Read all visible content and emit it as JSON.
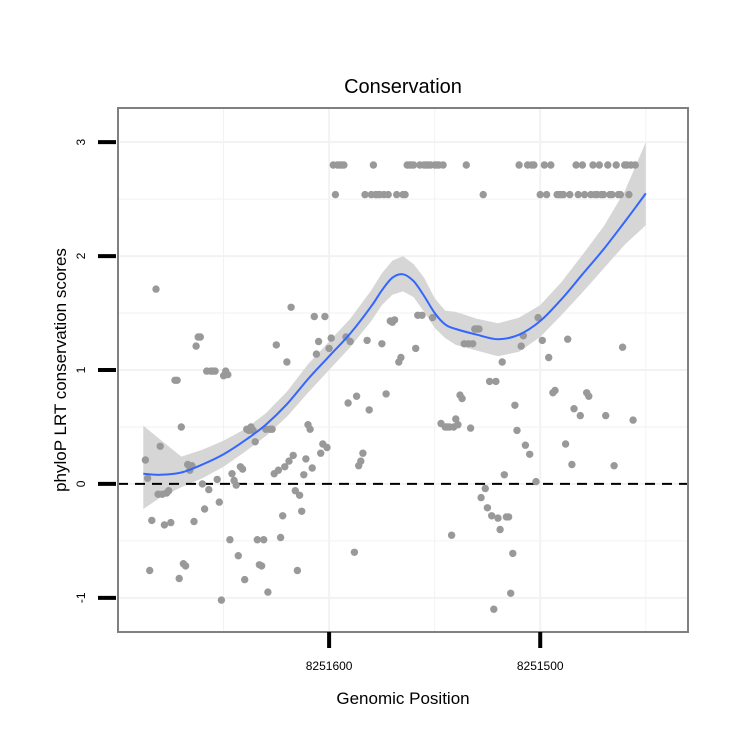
{
  "chart_data": {
    "type": "scatter",
    "title": "Conservation",
    "xlabel": "Genomic Position",
    "ylabel": "phyloP LRT conservation scores",
    "x_tick_labels": [
      "8251600",
      "8251500"
    ],
    "y_tick_labels": [
      "-1",
      "0",
      "1",
      "2",
      "3"
    ],
    "ylim": [
      -1.3,
      3.3
    ],
    "grid": true,
    "reference_line": {
      "y": 0,
      "style": "dashed"
    },
    "colors": {
      "points": "#999999",
      "smooth_line": "#3366ff",
      "ribbon": "#d6d6d6",
      "panel_border": "#808080",
      "grid": "#f2f2f2"
    },
    "series": [
      {
        "kind": "points",
        "points": [
          [
            8251687,
            0.21
          ],
          [
            8251686,
            0.05
          ],
          [
            8251685,
            -0.76
          ],
          [
            8251684,
            -0.32
          ],
          [
            8251682,
            1.71
          ],
          [
            8251681,
            -0.09
          ],
          [
            8251680,
            0.33
          ],
          [
            8251679,
            -0.09
          ],
          [
            8251678,
            -0.36
          ],
          [
            8251677,
            -0.08
          ],
          [
            8251676,
            -0.06
          ],
          [
            8251675,
            -0.34
          ],
          [
            8251673,
            0.91
          ],
          [
            8251672,
            0.91
          ],
          [
            8251671,
            -0.83
          ],
          [
            8251670,
            0.5
          ],
          [
            8251669,
            -0.7
          ],
          [
            8251668,
            -0.72
          ],
          [
            8251667,
            0.17
          ],
          [
            8251666,
            0.12
          ],
          [
            8251665,
            0.16
          ],
          [
            8251664,
            -0.33
          ],
          [
            8251663,
            1.21
          ],
          [
            8251662,
            1.29
          ],
          [
            8251661,
            1.29
          ],
          [
            8251660,
            0.0
          ],
          [
            8251659,
            -0.22
          ],
          [
            8251658,
            0.99
          ],
          [
            8251657,
            -0.05
          ],
          [
            8251656,
            0.99
          ],
          [
            8251655,
            0.99
          ],
          [
            8251654,
            0.99
          ],
          [
            8251653,
            0.04
          ],
          [
            8251652,
            -0.16
          ],
          [
            8251651,
            -1.02
          ],
          [
            8251650,
            0.95
          ],
          [
            8251649,
            0.99
          ],
          [
            8251648,
            0.96
          ],
          [
            8251647,
            -0.49
          ],
          [
            8251646,
            0.09
          ],
          [
            8251645,
            0.03
          ],
          [
            8251644,
            -0.01
          ],
          [
            8251643,
            -0.63
          ],
          [
            8251642,
            0.15
          ],
          [
            8251641,
            0.13
          ],
          [
            8251640,
            -0.84
          ],
          [
            8251639,
            0.48
          ],
          [
            8251638,
            0.47
          ],
          [
            8251637,
            0.5
          ],
          [
            8251636,
            0.47
          ],
          [
            8251635,
            0.37
          ],
          [
            8251634,
            -0.49
          ],
          [
            8251633,
            -0.71
          ],
          [
            8251632,
            -0.72
          ],
          [
            8251631,
            -0.49
          ],
          [
            8251630,
            0.48
          ],
          [
            8251629,
            -0.95
          ],
          [
            8251628,
            0.48
          ],
          [
            8251627,
            0.48
          ],
          [
            8251626,
            0.09
          ],
          [
            8251625,
            1.22
          ],
          [
            8251624,
            0.12
          ],
          [
            8251623,
            -0.47
          ],
          [
            8251622,
            -0.28
          ],
          [
            8251621,
            0.15
          ],
          [
            8251620,
            1.07
          ],
          [
            8251619,
            0.2
          ],
          [
            8251618,
            1.55
          ],
          [
            8251617,
            0.25
          ],
          [
            8251616,
            -0.06
          ],
          [
            8251615,
            -0.76
          ],
          [
            8251614,
            -0.1
          ],
          [
            8251613,
            -0.24
          ],
          [
            8251612,
            0.08
          ],
          [
            8251611,
            0.22
          ],
          [
            8251610,
            0.52
          ],
          [
            8251609,
            0.48
          ],
          [
            8251608,
            0.14
          ],
          [
            8251607,
            1.47
          ],
          [
            8251606,
            1.14
          ],
          [
            8251605,
            1.25
          ],
          [
            8251604,
            0.27
          ],
          [
            8251603,
            0.35
          ],
          [
            8251602,
            1.47
          ],
          [
            8251601,
            0.32
          ],
          [
            8251600,
            1.19
          ],
          [
            8251599,
            1.28
          ],
          [
            8251598,
            2.8
          ],
          [
            8251597,
            2.54
          ],
          [
            8251596,
            2.8
          ],
          [
            8251595,
            2.8
          ],
          [
            8251594,
            2.8
          ],
          [
            8251593,
            2.8
          ],
          [
            8251592,
            1.29
          ],
          [
            8251591,
            0.71
          ],
          [
            8251590,
            1.25
          ],
          [
            8251588,
            -0.6
          ],
          [
            8251587,
            0.77
          ],
          [
            8251586,
            0.16
          ],
          [
            8251585,
            0.2
          ],
          [
            8251584,
            0.27
          ],
          [
            8251583,
            2.54
          ],
          [
            8251582,
            1.26
          ],
          [
            8251581,
            0.65
          ],
          [
            8251580,
            2.54
          ],
          [
            8251579,
            2.8
          ],
          [
            8251578,
            2.54
          ],
          [
            8251577,
            2.54
          ],
          [
            8251576,
            2.54
          ],
          [
            8251575,
            1.23
          ],
          [
            8251574,
            2.54
          ],
          [
            8251573,
            0.79
          ],
          [
            8251572,
            2.54
          ],
          [
            8251571,
            1.43
          ],
          [
            8251570,
            1.42
          ],
          [
            8251569,
            1.44
          ],
          [
            8251568,
            2.54
          ],
          [
            8251567,
            1.07
          ],
          [
            8251566,
            1.11
          ],
          [
            8251565,
            2.54
          ],
          [
            8251564,
            2.54
          ],
          [
            8251563,
            2.8
          ],
          [
            8251562,
            2.8
          ],
          [
            8251561,
            2.8
          ],
          [
            8251560,
            2.8
          ],
          [
            8251559,
            1.19
          ],
          [
            8251558,
            1.48
          ],
          [
            8251557,
            2.8
          ],
          [
            8251556,
            1.48
          ],
          [
            8251555,
            2.8
          ],
          [
            8251554,
            2.8
          ],
          [
            8251553,
            2.8
          ],
          [
            8251552,
            2.8
          ],
          [
            8251551,
            1.46
          ],
          [
            8251550,
            2.8
          ],
          [
            8251549,
            2.8
          ],
          [
            8251548,
            2.8
          ],
          [
            8251547,
            0.53
          ],
          [
            8251546,
            2.8
          ],
          [
            8251545,
            0.5
          ],
          [
            8251544,
            0.5
          ],
          [
            8251543,
            0.5
          ],
          [
            8251542,
            -0.45
          ],
          [
            8251541,
            0.5
          ],
          [
            8251540,
            0.57
          ],
          [
            8251539,
            0.52
          ],
          [
            8251538,
            0.78
          ],
          [
            8251537,
            0.75
          ],
          [
            8251536,
            1.23
          ],
          [
            8251535,
            2.8
          ],
          [
            8251534,
            1.23
          ],
          [
            8251533,
            0.49
          ],
          [
            8251532,
            1.23
          ],
          [
            8251531,
            1.36
          ],
          [
            8251530,
            1.36
          ],
          [
            8251529,
            1.36
          ],
          [
            8251528,
            -0.12
          ],
          [
            8251527,
            2.54
          ],
          [
            8251526,
            -0.04
          ],
          [
            8251525,
            -0.21
          ],
          [
            8251524,
            0.9
          ],
          [
            8251523,
            -0.28
          ],
          [
            8251522,
            -1.1
          ],
          [
            8251521,
            0.9
          ],
          [
            8251520,
            -0.3
          ],
          [
            8251519,
            -0.4
          ],
          [
            8251518,
            1.07
          ],
          [
            8251517,
            0.08
          ],
          [
            8251516,
            -0.29
          ],
          [
            8251515,
            -0.29
          ],
          [
            8251514,
            -0.96
          ],
          [
            8251513,
            -0.61
          ],
          [
            8251512,
            0.69
          ],
          [
            8251511,
            0.47
          ],
          [
            8251510,
            2.8
          ],
          [
            8251509,
            1.21
          ],
          [
            8251508,
            1.3
          ],
          [
            8251507,
            0.34
          ],
          [
            8251506,
            2.8
          ],
          [
            8251505,
            0.26
          ],
          [
            8251504,
            2.8
          ],
          [
            8251503,
            2.8
          ],
          [
            8251502,
            0.02
          ],
          [
            8251501,
            1.46
          ],
          [
            8251500,
            2.54
          ],
          [
            8251499,
            1.26
          ],
          [
            8251498,
            2.8
          ],
          [
            8251497,
            2.54
          ],
          [
            8251496,
            1.11
          ],
          [
            8251495,
            2.8
          ],
          [
            8251494,
            0.8
          ],
          [
            8251493,
            0.82
          ],
          [
            8251492,
            2.54
          ],
          [
            8251491,
            2.54
          ],
          [
            8251490,
            2.54
          ],
          [
            8251489,
            2.54
          ],
          [
            8251488,
            0.35
          ],
          [
            8251487,
            1.27
          ],
          [
            8251486,
            2.54
          ],
          [
            8251485,
            0.17
          ],
          [
            8251484,
            0.66
          ],
          [
            8251483,
            2.8
          ],
          [
            8251482,
            2.54
          ],
          [
            8251481,
            0.6
          ],
          [
            8251480,
            2.8
          ],
          [
            8251479,
            2.54
          ],
          [
            8251478,
            0.8
          ],
          [
            8251477,
            0.77
          ],
          [
            8251476,
            2.54
          ],
          [
            8251475,
            2.8
          ],
          [
            8251474,
            2.54
          ],
          [
            8251473,
            2.54
          ],
          [
            8251472,
            2.8
          ],
          [
            8251471,
            2.54
          ],
          [
            8251470,
            2.54
          ],
          [
            8251469,
            0.6
          ],
          [
            8251468,
            2.8
          ],
          [
            8251467,
            2.54
          ],
          [
            8251466,
            2.54
          ],
          [
            8251465,
            0.16
          ],
          [
            8251464,
            2.8
          ],
          [
            8251463,
            2.54
          ],
          [
            8251462,
            2.54
          ],
          [
            8251461,
            1.2
          ],
          [
            8251460,
            2.8
          ],
          [
            8251459,
            2.8
          ],
          [
            8251458,
            2.54
          ],
          [
            8251457,
            2.8
          ],
          [
            8251456,
            0.56
          ],
          [
            8251455,
            2.8
          ]
        ]
      },
      {
        "kind": "smooth",
        "x": [
          8251688,
          8251680,
          8251670,
          8251660,
          8251650,
          8251640,
          8251630,
          8251620,
          8251610,
          8251600,
          8251590,
          8251580,
          8251575,
          8251570,
          8251565,
          8251560,
          8251555,
          8251550,
          8251545,
          8251540,
          8251530,
          8251520,
          8251510,
          8251500,
          8251490,
          8251480,
          8251470,
          8251460,
          8251450
        ],
        "y": [
          0.09,
          0.08,
          0.1,
          0.17,
          0.26,
          0.38,
          0.52,
          0.7,
          0.92,
          1.12,
          1.32,
          1.56,
          1.7,
          1.81,
          1.84,
          1.78,
          1.65,
          1.5,
          1.4,
          1.36,
          1.31,
          1.27,
          1.31,
          1.43,
          1.62,
          1.84,
          2.06,
          2.3,
          2.55
        ],
        "lower": [
          -0.22,
          -0.12,
          -0.03,
          0.05,
          0.15,
          0.28,
          0.42,
          0.59,
          0.8,
          1.0,
          1.2,
          1.43,
          1.57,
          1.66,
          1.69,
          1.64,
          1.51,
          1.37,
          1.28,
          1.22,
          1.17,
          1.12,
          1.16,
          1.29,
          1.48,
          1.68,
          1.89,
          2.1,
          2.27
        ],
        "upper": [
          0.51,
          0.39,
          0.24,
          0.3,
          0.38,
          0.48,
          0.62,
          0.81,
          1.05,
          1.25,
          1.45,
          1.7,
          1.85,
          1.96,
          2.0,
          1.93,
          1.81,
          1.63,
          1.52,
          1.51,
          1.45,
          1.41,
          1.46,
          1.57,
          1.77,
          2.01,
          2.26,
          2.57,
          3.0
        ]
      }
    ]
  }
}
